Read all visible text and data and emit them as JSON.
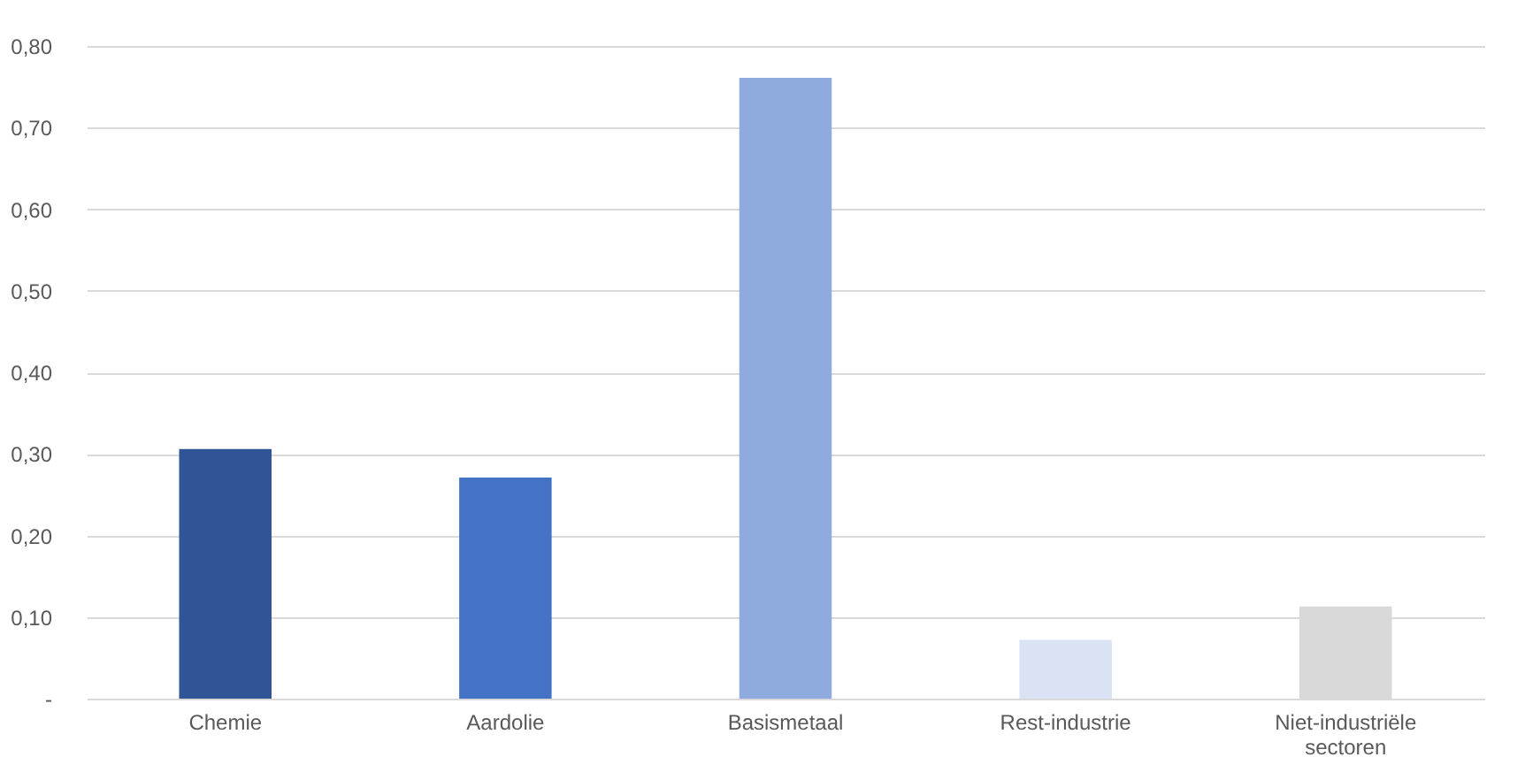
{
  "chart_data": {
    "type": "bar",
    "categories": [
      "Chemie",
      "Aardolie",
      "Basismetaal",
      "Rest-industrie",
      "Niet-industriële sectoren"
    ],
    "values": [
      0.306,
      0.271,
      0.761,
      0.072,
      0.113
    ],
    "colors": [
      "#2f5597",
      "#4472c4",
      "#8faadc",
      "#dae3f3",
      "#d9d9d9"
    ],
    "ylim": [
      0,
      0.8
    ],
    "yticks": [
      {
        "value": 0,
        "label": "-"
      },
      {
        "value": 0.1,
        "label": "0,10"
      },
      {
        "value": 0.2,
        "label": "0,20"
      },
      {
        "value": 0.3,
        "label": "0,30"
      },
      {
        "value": 0.4,
        "label": "0,40"
      },
      {
        "value": 0.5,
        "label": "0,50"
      },
      {
        "value": 0.6,
        "label": "0,60"
      },
      {
        "value": 0.7,
        "label": "0,70"
      },
      {
        "value": 0.8,
        "label": "0,80"
      }
    ],
    "grid": true
  }
}
